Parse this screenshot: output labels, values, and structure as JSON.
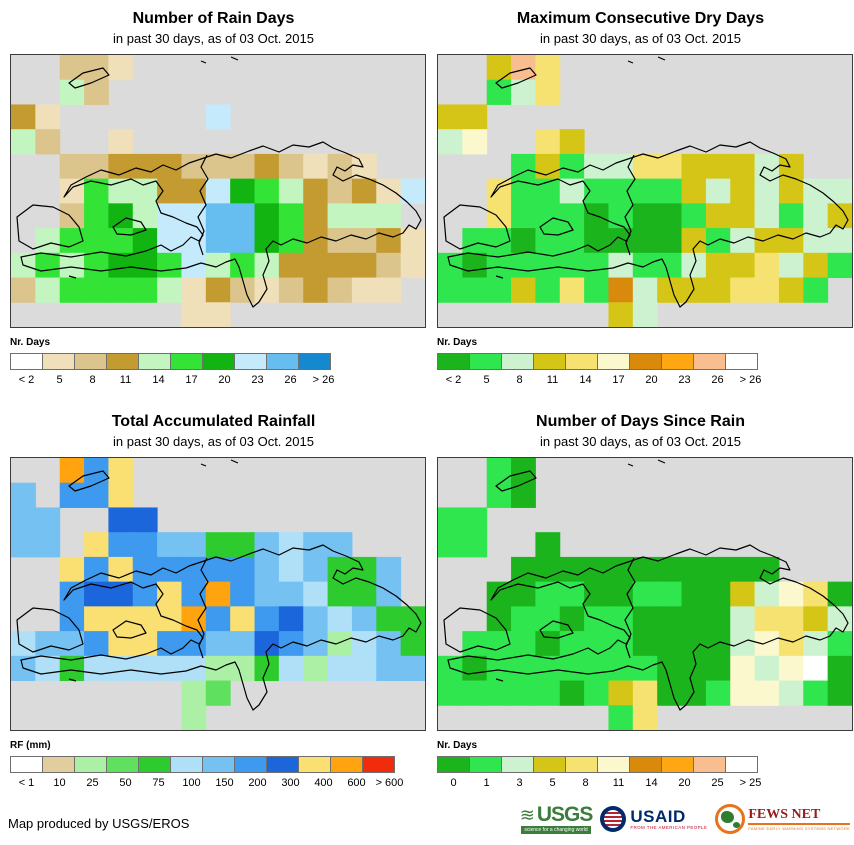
{
  "page": {
    "sea_color": "#dbdbdb",
    "footer_credit": "Map produced by USGS/EROS"
  },
  "palettes": {
    "rain_days": {
      "0": "#ffffff",
      "1": "#f0e0ba",
      "2": "#dbc58c",
      "3": "#c49b30",
      "4": "#c3f5c0",
      "5": "#33e436",
      "6": "#11b411",
      "7": "#c5eafb",
      "8": "#66bef0",
      "9": "#1589cf"
    },
    "dry_days": {
      "0": "#1cb41c",
      "1": "#30e64e",
      "2": "#cdf2cf",
      "3": "#d5c516",
      "4": "#f6e270",
      "5": "#fbf8cd",
      "6": "#d98a0d",
      "7": "#ffa713",
      "8": "#f8be8f",
      "9": "#ffffff"
    },
    "rainfall": {
      "0": "#ffffff",
      "1": "#e2cd9f",
      "2": "#acf0a5",
      "3": "#5fe05f",
      "4": "#2ecb2e",
      "5": "#b0e0f7",
      "6": "#74c1f2",
      "7": "#3e9aef",
      "8": "#1c66dc",
      "9": "#fadf73",
      "a": "#ffa30f",
      "b": "#f02c0c"
    }
  },
  "panels": [
    {
      "title": "Number of Rain Days",
      "subtitle": "in past 30 days, as of 03 Oct. 2015",
      "legend_label": "Nr. Days",
      "palette": "rain_days",
      "legend": [
        {
          "color": "#ffffff",
          "label": "< 2"
        },
        {
          "color": "#f0e0ba",
          "label": "5"
        },
        {
          "color": "#dbc58c",
          "label": "8"
        },
        {
          "color": "#c49b30",
          "label": "11"
        },
        {
          "color": "#c3f5c0",
          "label": "14"
        },
        {
          "color": "#33e436",
          "label": "17"
        },
        {
          "color": "#11b411",
          "label": "20"
        },
        {
          "color": "#c5eafb",
          "label": "23"
        },
        {
          "color": "#66bef0",
          "label": "26"
        },
        {
          "color": "#1589cf",
          "label": "> 26"
        }
      ],
      "grid": [
        "..221............",
        "..42.............",
        "31......7........",
        "42..1............",
        "..2233322232121..",
        "..154433765432317",
        "..25647788653444.",
        ".4555677886532231",
        "45456657454333321",
        "2455554132123211.",
        ".......11........"
      ]
    },
    {
      "title": "Maximum Consecutive Dry Days",
      "subtitle": "in past 30 days, as of 03 Oct. 2015",
      "legend_label": "Nr. Days",
      "palette": "dry_days",
      "legend": [
        {
          "color": "#1cb41c",
          "label": "< 2"
        },
        {
          "color": "#30e64e",
          "label": "5"
        },
        {
          "color": "#cdf2cf",
          "label": "8"
        },
        {
          "color": "#d5c516",
          "label": "11"
        },
        {
          "color": "#f6e270",
          "label": "14"
        },
        {
          "color": "#fbf8cd",
          "label": "17"
        },
        {
          "color": "#d98a0d",
          "label": "20"
        },
        {
          "color": "#ffa713",
          "label": "23"
        },
        {
          "color": "#f8be8f",
          "label": "26"
        },
        {
          "color": "#ffffff",
          "label": "> 26"
        }
      ],
      "grid": [
        "..384............",
        "..124............",
        "33...............",
        "25..43...........",
        "...131224433323..",
        "..411211113232322",
        "..411101001332123",
        ".1101100003123322",
        "10111112112334231",
        "1113141623334431.",
        ".......32........"
      ]
    },
    {
      "title": "Total Accumulated Rainfall",
      "subtitle": "in past 30 days, as of 03 Oct. 2015",
      "legend_label": "RF (mm)",
      "palette": "rainfall",
      "legend": [
        {
          "color": "#ffffff",
          "label": "< 1"
        },
        {
          "color": "#e2cd9f",
          "label": "10"
        },
        {
          "color": "#acf0a5",
          "label": "25"
        },
        {
          "color": "#5fe05f",
          "label": "50"
        },
        {
          "color": "#2ecb2e",
          "label": "75"
        },
        {
          "color": "#b0e0f7",
          "label": "100"
        },
        {
          "color": "#74c1f2",
          "label": "150"
        },
        {
          "color": "#3e9aef",
          "label": "200"
        },
        {
          "color": "#1c66dc",
          "label": "300"
        },
        {
          "color": "#fadf73",
          "label": "400"
        },
        {
          "color": "#ffa30f",
          "label": "600"
        },
        {
          "color": "#f02c0c",
          "label": "> 600"
        }
      ],
      "grid": [
        "..a79............",
        "6.779............",
        "66..88...........",
        "66.97766446566...",
        "..97977777656446.",
        "..788797a7665446.",
        "..79999a797865644",
        "56679977668762564",
        "65455555224525566",
        ".......23........",
        ".......2........."
      ]
    },
    {
      "title": "Number of Days Since Rain",
      "subtitle": "in past 30 days, as of 03 Oct. 2015",
      "legend_label": "Nr. Days",
      "palette": "dry_days",
      "legend": [
        {
          "color": "#1cb41c",
          "label": "0"
        },
        {
          "color": "#30e64e",
          "label": "1"
        },
        {
          "color": "#cdf2cf",
          "label": "3"
        },
        {
          "color": "#d5c516",
          "label": "5"
        },
        {
          "color": "#f6e270",
          "label": "8"
        },
        {
          "color": "#fbf8cd",
          "label": "11"
        },
        {
          "color": "#d98a0d",
          "label": "14"
        },
        {
          "color": "#ffa713",
          "label": "20"
        },
        {
          "color": "#f8be8f",
          "label": "25"
        },
        {
          "color": "#ffffff",
          "label": "> 25"
        }
      ],
      "grid": [
        "..10.............",
        "..10.............",
        "11...............",
        "11..0............",
        "...00000000000...",
        "..001100110032540",
        "..011011000024432",
        ".1110111000025421",
        "10111111100052590",
        "11111013400155210",
        ".......14........"
      ]
    }
  ],
  "logos": {
    "usgs": {
      "name": "USGS",
      "tagline": "science for a changing world"
    },
    "usaid": {
      "name": "USAID",
      "tagline": "FROM THE AMERICAN PEOPLE"
    },
    "fews": {
      "name": "FEWS NET",
      "tagline": "FAMINE EARLY WARNING SYSTEMS NETWORK"
    }
  }
}
